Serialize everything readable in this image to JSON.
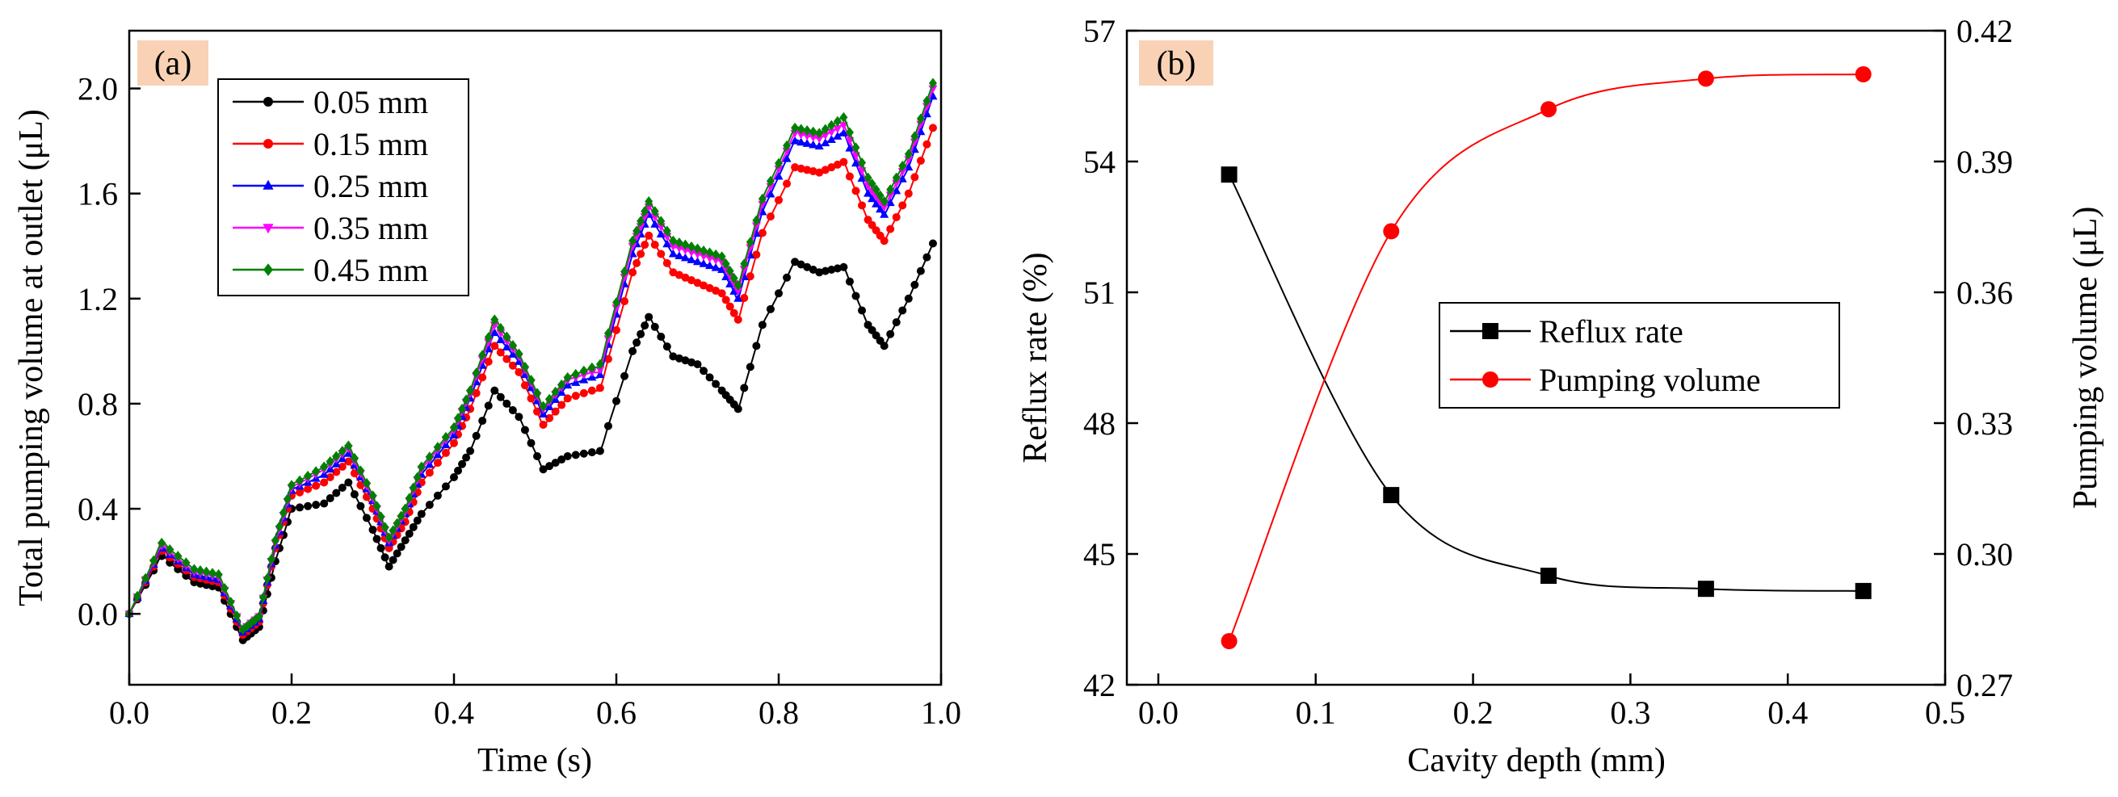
{
  "chart_data": [
    {
      "type": "line",
      "panel_label": "(a)",
      "xlabel": "Time (s)",
      "ylabel": "Total pumping volume at outlet (μL)",
      "xlim": [
        0,
        1.0
      ],
      "ylim": [
        -0.27,
        2.22
      ],
      "xticks": [
        0.0,
        0.2,
        0.4,
        0.6,
        0.8,
        1.0
      ],
      "xtick_labels": [
        "0.0",
        "0.2",
        "0.4",
        "0.6",
        "0.8",
        "1.0"
      ],
      "yticks": [
        0.0,
        0.4,
        0.8,
        1.2,
        1.6,
        2.0
      ],
      "ytick_labels": [
        "0.0",
        "0.4",
        "0.8",
        "1.2",
        "1.6",
        "2.0"
      ],
      "legend_position": "top-left",
      "x": [
        0.0,
        0.04,
        0.08,
        0.11,
        0.14,
        0.16,
        0.18,
        0.2,
        0.24,
        0.27,
        0.3,
        0.32,
        0.34,
        0.36,
        0.4,
        0.42,
        0.45,
        0.48,
        0.51,
        0.54,
        0.58,
        0.62,
        0.64,
        0.67,
        0.7,
        0.73,
        0.75,
        0.78,
        0.82,
        0.85,
        0.88,
        0.91,
        0.93,
        0.96,
        0.99
      ],
      "series": [
        {
          "name": "0.05 mm",
          "color": "#000000",
          "marker": "circle",
          "values": [
            0.0,
            0.22,
            0.12,
            0.1,
            -0.1,
            -0.05,
            0.2,
            0.4,
            0.42,
            0.5,
            0.32,
            0.18,
            0.28,
            0.38,
            0.52,
            0.62,
            0.85,
            0.75,
            0.55,
            0.6,
            0.62,
            1.0,
            1.13,
            0.98,
            0.95,
            0.85,
            0.78,
            1.1,
            1.34,
            1.3,
            1.32,
            1.1,
            1.02,
            1.2,
            1.41
          ]
        },
        {
          "name": "0.15 mm",
          "color": "#ff0000",
          "marker": "circle",
          "values": [
            0.0,
            0.24,
            0.14,
            0.12,
            -0.08,
            -0.03,
            0.25,
            0.45,
            0.5,
            0.58,
            0.4,
            0.25,
            0.35,
            0.5,
            0.65,
            0.78,
            1.02,
            0.92,
            0.72,
            0.82,
            0.86,
            1.3,
            1.44,
            1.3,
            1.26,
            1.22,
            1.12,
            1.45,
            1.7,
            1.68,
            1.72,
            1.5,
            1.42,
            1.6,
            1.85
          ]
        },
        {
          "name": "0.25 mm",
          "color": "#0000ff",
          "marker": "triangle-up",
          "values": [
            0.0,
            0.25,
            0.15,
            0.13,
            -0.07,
            -0.02,
            0.26,
            0.47,
            0.53,
            0.61,
            0.43,
            0.27,
            0.38,
            0.53,
            0.68,
            0.82,
            1.07,
            0.96,
            0.76,
            0.87,
            0.91,
            1.37,
            1.52,
            1.37,
            1.34,
            1.31,
            1.2,
            1.53,
            1.8,
            1.78,
            1.83,
            1.6,
            1.52,
            1.7,
            1.97
          ]
        },
        {
          "name": "0.35 mm",
          "color": "#ff00ff",
          "marker": "triangle-down",
          "values": [
            0.0,
            0.26,
            0.16,
            0.14,
            -0.06,
            -0.01,
            0.27,
            0.48,
            0.55,
            0.63,
            0.44,
            0.28,
            0.39,
            0.55,
            0.7,
            0.84,
            1.1,
            0.98,
            0.78,
            0.89,
            0.93,
            1.4,
            1.55,
            1.4,
            1.37,
            1.34,
            1.23,
            1.56,
            1.83,
            1.81,
            1.86,
            1.63,
            1.55,
            1.73,
            2.0
          ]
        },
        {
          "name": "0.45 mm",
          "color": "#008000",
          "marker": "diamond",
          "values": [
            0.0,
            0.27,
            0.17,
            0.15,
            -0.06,
            -0.01,
            0.28,
            0.49,
            0.56,
            0.64,
            0.45,
            0.29,
            0.4,
            0.56,
            0.71,
            0.85,
            1.12,
            0.99,
            0.79,
            0.9,
            0.95,
            1.42,
            1.57,
            1.42,
            1.39,
            1.36,
            1.25,
            1.58,
            1.85,
            1.83,
            1.89,
            1.66,
            1.57,
            1.75,
            2.02
          ]
        }
      ]
    },
    {
      "type": "line",
      "panel_label": "(b)",
      "xlabel": "Cavity depth (mm)",
      "ylabel": "Reflux rate (%)",
      "ylabel_right": "Pumping volume (μL)",
      "xlim": [
        -0.02,
        0.5
      ],
      "ylim": [
        42,
        57
      ],
      "ylim_right": [
        0.27,
        0.42
      ],
      "xticks": [
        0.0,
        0.1,
        0.2,
        0.3,
        0.4,
        0.5
      ],
      "xtick_labels": [
        "0.0",
        "0.1",
        "0.2",
        "0.3",
        "0.4",
        "0.5"
      ],
      "yticks": [
        42,
        45,
        48,
        51,
        54,
        57
      ],
      "ytick_labels": [
        "42",
        "45",
        "48",
        "51",
        "54",
        "57"
      ],
      "yticks_right": [
        0.27,
        0.3,
        0.33,
        0.36,
        0.39,
        0.42
      ],
      "ytick_labels_right": [
        "0.27",
        "0.30",
        "0.33",
        "0.36",
        "0.39",
        "0.42"
      ],
      "legend_position": "center-right",
      "x": [
        0.045,
        0.148,
        0.248,
        0.348,
        0.448
      ],
      "series": [
        {
          "name": "Reflux rate",
          "color": "#000000",
          "marker": "square",
          "axis": "left",
          "values": [
            53.7,
            46.35,
            44.5,
            44.2,
            44.15
          ]
        },
        {
          "name": "Pumping volume",
          "color": "#ff0000",
          "marker": "circle",
          "axis": "right",
          "values": [
            0.28,
            0.374,
            0.402,
            0.409,
            0.41
          ]
        }
      ]
    }
  ]
}
